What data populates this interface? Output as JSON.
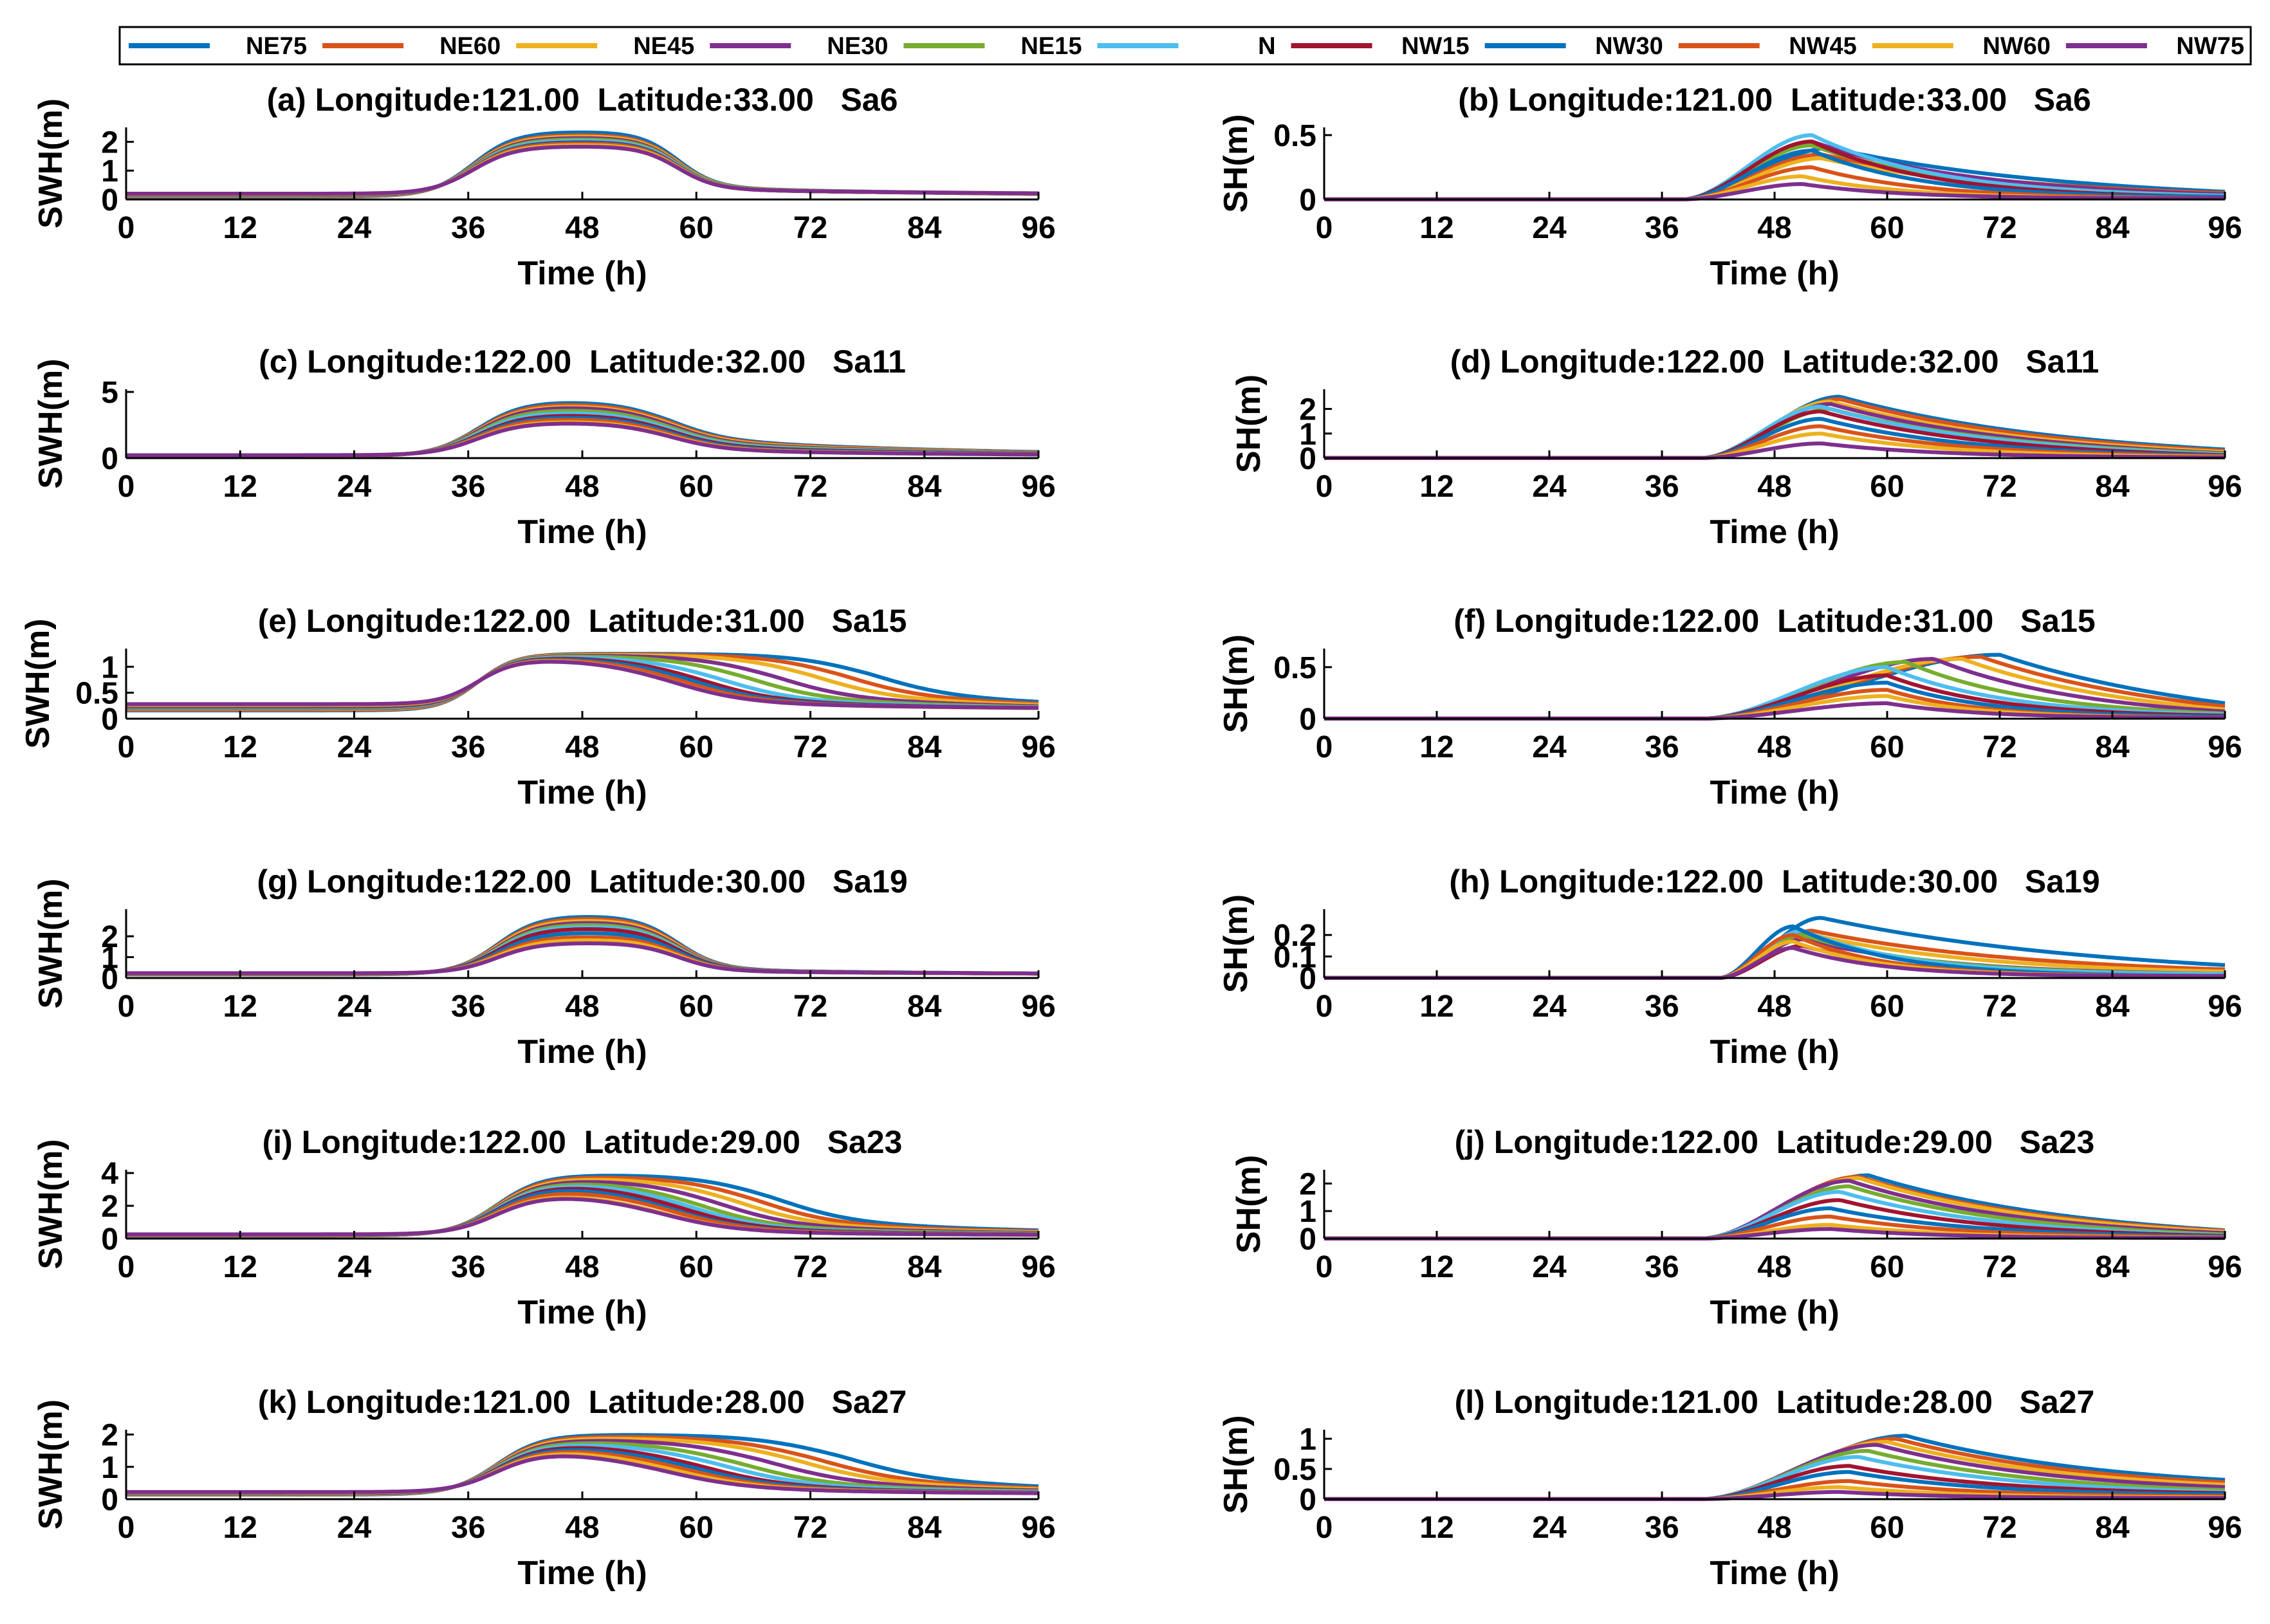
{
  "legend": {
    "placement": "top",
    "entries": [
      {
        "name": "NE75",
        "color": "#0072BD"
      },
      {
        "name": "NE60",
        "color": "#D95319"
      },
      {
        "name": "NE45",
        "color": "#EDB120"
      },
      {
        "name": "NE30",
        "color": "#7E2F8E"
      },
      {
        "name": "NE15",
        "color": "#77AC30"
      },
      {
        "name": "N",
        "color": "#4DBEEE"
      },
      {
        "name": "NW15",
        "color": "#A2142F"
      },
      {
        "name": "NW30",
        "color": "#0072BD"
      },
      {
        "name": "NW45",
        "color": "#D95319"
      },
      {
        "name": "NW60",
        "color": "#EDB120"
      },
      {
        "name": "NW75",
        "color": "#7E2F8E"
      }
    ]
  },
  "chart_data": [
    {
      "type": "line",
      "title": "(a) Longitude:121.00  Latitude:33.00   Sa6",
      "xlabel": "Time (h)",
      "ylabel": "SWH(m)",
      "xlim": [
        0,
        96
      ],
      "ylim": [
        0,
        2.5
      ],
      "xticks": [
        "0",
        "12",
        "24",
        "36",
        "48",
        "60",
        "72",
        "84",
        "96"
      ],
      "yticks": [
        "0",
        "1",
        "2"
      ],
      "ytick_values": [
        0,
        1,
        2
      ],
      "curve": {
        "kind": "swh",
        "base": 0.15,
        "base_spread": 0.05,
        "rise_center": 36.5,
        "rise_k": 0.45,
        "fall_center": 58,
        "fall_k": 0.5,
        "peak": [
          2.35,
          2.25,
          2.2,
          2.15,
          2.1,
          2.05,
          2.0,
          1.98,
          1.95,
          1.9,
          1.85
        ],
        "tail": [
          0.35,
          0.33,
          0.32,
          0.3,
          0.3,
          0.28,
          0.27,
          0.26,
          0.25,
          0.25,
          0.24
        ],
        "tail_tau": 40
      }
    },
    {
      "type": "line",
      "title": "(b) Longitude:121.00  Latitude:33.00   Sa6",
      "xlabel": "Time (h)",
      "ylabel": "SH(m)",
      "xlim": [
        0,
        96
      ],
      "ylim": [
        0,
        0.56
      ],
      "xticks": [
        "0",
        "12",
        "24",
        "36",
        "48",
        "60",
        "72",
        "84",
        "96"
      ],
      "yticks": [
        "0",
        "0.5"
      ],
      "ytick_values": [
        0,
        0.5
      ],
      "curve": {
        "kind": "sh",
        "onset": 38,
        "peak_t": [
          54,
          53,
          53,
          52,
          52,
          52,
          52,
          52,
          52,
          51,
          51
        ],
        "peak": [
          0.4,
          0.35,
          0.32,
          0.45,
          0.42,
          0.5,
          0.45,
          0.38,
          0.25,
          0.18,
          0.12
        ],
        "tau": [
          25,
          22,
          20,
          18,
          16,
          14,
          13,
          12,
          12,
          11,
          11
        ],
        "end": [
          0.06,
          0.05,
          0.04,
          0.04,
          0.03,
          0.03,
          0.02,
          0.02,
          0.01,
          0.01,
          0.01
        ]
      }
    },
    {
      "type": "line",
      "title": "(c) Longitude:122.00  Latitude:32.00   Sa11",
      "xlabel": "Time (h)",
      "ylabel": "SWH(m)",
      "xlim": [
        0,
        96
      ],
      "ylim": [
        0,
        5.2
      ],
      "xticks": [
        "0",
        "12",
        "24",
        "36",
        "48",
        "60",
        "72",
        "84",
        "96"
      ],
      "yticks": [
        "0",
        "5"
      ],
      "ytick_values": [
        0,
        5
      ],
      "curve": {
        "kind": "swh",
        "base": 0.18,
        "base_spread": 0.04,
        "rise_center": 37,
        "rise_k": 0.42,
        "fall_center": 57,
        "fall_k": 0.35,
        "peak": [
          4.3,
          4.15,
          4.0,
          3.9,
          3.7,
          3.5,
          3.3,
          3.15,
          3.0,
          2.8,
          2.7
        ],
        "tail": [
          1.4,
          1.3,
          1.2,
          1.1,
          1.0,
          0.9,
          0.8,
          0.7,
          0.6,
          0.55,
          0.5
        ],
        "tail_tau": 30
      }
    },
    {
      "type": "line",
      "title": "(d) Longitude:122.00  Latitude:32.00   Sa11",
      "xlabel": "Time (h)",
      "ylabel": "SH(m)",
      "xlim": [
        0,
        96
      ],
      "ylim": [
        0,
        2.8
      ],
      "xticks": [
        "0",
        "12",
        "24",
        "36",
        "48",
        "60",
        "72",
        "84",
        "96"
      ],
      "yticks": [
        "0",
        "1",
        "2"
      ],
      "ytick_values": [
        0,
        1,
        2
      ],
      "curve": {
        "kind": "sh",
        "onset": 40,
        "peak_t": [
          55,
          55,
          54,
          54,
          54,
          53,
          53,
          53,
          53,
          53,
          53
        ],
        "peak": [
          2.5,
          2.4,
          2.3,
          2.2,
          2.0,
          2.1,
          1.9,
          1.6,
          1.3,
          1.0,
          0.6
        ],
        "tau": [
          24,
          23,
          22,
          21,
          20,
          19,
          18,
          16,
          15,
          14,
          13
        ],
        "end": [
          0.35,
          0.3,
          0.25,
          0.2,
          0.18,
          0.15,
          0.12,
          0.1,
          0.08,
          0.05,
          0.03
        ]
      }
    },
    {
      "type": "line",
      "title": "(e) Longitude:122.00  Latitude:31.00   Sa15",
      "xlabel": "Time (h)",
      "ylabel": "SWH(m)",
      "xlim": [
        0,
        96
      ],
      "ylim": [
        0,
        1.35
      ],
      "xticks": [
        "0",
        "12",
        "24",
        "36",
        "48",
        "60",
        "72",
        "84",
        "96"
      ],
      "yticks": [
        "0",
        "0.5",
        "1"
      ],
      "ytick_values": [
        0,
        0.5,
        1
      ],
      "curve": {
        "kind": "swh",
        "base": 0.22,
        "base_spread": 0.06,
        "rise_center": 37,
        "rise_k": 0.5,
        "fall_center": [
          78,
          75,
          72,
          68,
          65,
          62,
          60,
          59,
          58,
          57,
          57
        ],
        "fall_k": 0.25,
        "peak": [
          1.25,
          1.24,
          1.23,
          1.22,
          1.21,
          1.2,
          1.19,
          1.18,
          1.17,
          1.16,
          1.15
        ],
        "tail": [
          0.4,
          0.37,
          0.34,
          0.31,
          0.28,
          0.25,
          0.22,
          0.2,
          0.18,
          0.16,
          0.15
        ],
        "tail_tau": 30
      }
    },
    {
      "type": "line",
      "title": "(f) Longitude:122.00  Latitude:31.00   Sa15",
      "xlabel": "Time (h)",
      "ylabel": "SH(m)",
      "xlim": [
        0,
        96
      ],
      "ylim": [
        0,
        0.68
      ],
      "xticks": [
        "0",
        "12",
        "24",
        "36",
        "48",
        "60",
        "72",
        "84",
        "96"
      ],
      "yticks": [
        "0",
        "0.5"
      ],
      "ytick_values": [
        0,
        0.5
      ],
      "curve": {
        "kind": "sh",
        "onset": 40,
        "peak_t": [
          72,
          70,
          68,
          65,
          62,
          60,
          60,
          60,
          60,
          60,
          60
        ],
        "peak": [
          0.62,
          0.6,
          0.58,
          0.58,
          0.55,
          0.5,
          0.42,
          0.35,
          0.28,
          0.22,
          0.15
        ],
        "tau": [
          22,
          20,
          18,
          16,
          14,
          13,
          12,
          11,
          10,
          10,
          10
        ],
        "end": [
          0.15,
          0.12,
          0.09,
          0.07,
          0.05,
          0.04,
          0.03,
          0.02,
          0.01,
          0.01,
          0.01
        ]
      }
    },
    {
      "type": "line",
      "title": "(g) Longitude:122.00  Latitude:30.00   Sa19",
      "xlabel": "Time (h)",
      "ylabel": "SWH(m)",
      "xlim": [
        0,
        96
      ],
      "ylim": [
        0,
        3.3
      ],
      "xticks": [
        "0",
        "12",
        "24",
        "36",
        "48",
        "60",
        "72",
        "84",
        "96"
      ],
      "yticks": [
        "0",
        "1",
        "2"
      ],
      "ytick_values": [
        0,
        1,
        2
      ],
      "curve": {
        "kind": "swh",
        "base": 0.2,
        "base_spread": 0.03,
        "rise_center": 39,
        "rise_k": 0.45,
        "fall_center": 58,
        "fall_k": 0.45,
        "peak": [
          3.0,
          2.9,
          2.8,
          2.7,
          2.6,
          2.5,
          2.4,
          2.2,
          2.0,
          1.85,
          1.7
        ],
        "tail": [
          0.3,
          0.28,
          0.27,
          0.26,
          0.25,
          0.24,
          0.23,
          0.22,
          0.21,
          0.2,
          0.2
        ],
        "tail_tau": 40
      }
    },
    {
      "type": "line",
      "title": "(h) Longitude:122.00  Latitude:30.00   Sa19",
      "xlabel": "Time (h)",
      "ylabel": "SH(m)",
      "xlim": [
        0,
        96
      ],
      "ylim": [
        0,
        0.32
      ],
      "xticks": [
        "0",
        "12",
        "24",
        "36",
        "48",
        "60",
        "72",
        "84",
        "96"
      ],
      "yticks": [
        "0",
        "0.1",
        "0.2"
      ],
      "ytick_values": [
        0,
        0.1,
        0.2
      ],
      "curve": {
        "kind": "sh",
        "onset": 42,
        "peak_t": [
          53,
          52,
          52,
          51,
          51,
          51,
          51,
          50,
          50,
          50,
          50
        ],
        "peak": [
          0.28,
          0.22,
          0.2,
          0.18,
          0.2,
          0.22,
          0.15,
          0.24,
          0.2,
          0.17,
          0.14
        ],
        "tau": [
          30,
          24,
          20,
          16,
          14,
          12,
          12,
          11,
          10,
          10,
          10
        ],
        "end": [
          0.06,
          0.04,
          0.03,
          0.02,
          0.02,
          0.02,
          0.01,
          0.01,
          0.01,
          0.01,
          0.01
        ]
      }
    },
    {
      "type": "line",
      "title": "(i) Longitude:122.00  Latitude:29.00   Sa23",
      "xlabel": "Time (h)",
      "ylabel": "SWH(m)",
      "xlim": [
        0,
        96
      ],
      "ylim": [
        0,
        4.2
      ],
      "xticks": [
        "0",
        "12",
        "24",
        "36",
        "48",
        "60",
        "72",
        "84",
        "96"
      ],
      "yticks": [
        "0",
        "2",
        "4"
      ],
      "ytick_values": [
        0,
        2,
        4
      ],
      "curve": {
        "kind": "swh",
        "base": 0.22,
        "base_spread": 0.04,
        "rise_center": 39,
        "rise_k": 0.42,
        "fall_center": [
          68,
          66,
          64,
          62,
          60,
          59,
          58,
          57,
          57,
          56,
          56
        ],
        "fall_k": 0.25,
        "peak": [
          3.9,
          3.8,
          3.7,
          3.6,
          3.5,
          3.4,
          3.3,
          3.2,
          3.0,
          2.8,
          2.7
        ],
        "tail": [
          1.0,
          0.9,
          0.8,
          0.7,
          0.6,
          0.5,
          0.45,
          0.4,
          0.35,
          0.3,
          0.28
        ],
        "tail_tau": 30
      }
    },
    {
      "type": "line",
      "title": "(j) Longitude:122.00  Latitude:29.00   Sa23",
      "xlabel": "Time (h)",
      "ylabel": "SH(m)",
      "xlim": [
        0,
        96
      ],
      "ylim": [
        0,
        2.5
      ],
      "xticks": [
        "0",
        "12",
        "24",
        "36",
        "48",
        "60",
        "72",
        "84",
        "96"
      ],
      "yticks": [
        "0",
        "1",
        "2"
      ],
      "ytick_values": [
        0,
        1,
        2
      ],
      "curve": {
        "kind": "sh",
        "onset": 40,
        "peak_t": [
          58,
          57,
          57,
          56,
          56,
          55,
          55,
          54,
          54,
          54,
          54
        ],
        "peak": [
          2.3,
          2.25,
          2.2,
          2.1,
          1.9,
          1.7,
          1.4,
          1.1,
          0.8,
          0.5,
          0.35
        ],
        "tau": [
          22,
          21,
          20,
          19,
          18,
          17,
          16,
          15,
          14,
          13,
          12
        ],
        "end": [
          0.3,
          0.28,
          0.25,
          0.2,
          0.15,
          0.12,
          0.1,
          0.08,
          0.05,
          0.03,
          0.02
        ]
      }
    },
    {
      "type": "line",
      "title": "(k) Longitude:121.00  Latitude:28.00   Sa27",
      "xlabel": "Time (h)",
      "ylabel": "SWH(m)",
      "xlim": [
        0,
        96
      ],
      "ylim": [
        0,
        2.15
      ],
      "xticks": [
        "0",
        "12",
        "24",
        "36",
        "48",
        "60",
        "72",
        "84",
        "96"
      ],
      "yticks": [
        "0",
        "1",
        "2"
      ],
      "ytick_values": [
        0,
        1,
        2
      ],
      "curve": {
        "kind": "swh",
        "base": 0.18,
        "base_spread": 0.04,
        "rise_center": 39,
        "rise_k": 0.42,
        "fall_center": [
          75,
          72,
          70,
          67,
          64,
          62,
          60,
          59,
          58,
          57,
          56
        ],
        "fall_k": 0.22,
        "peak": [
          2.0,
          1.95,
          1.9,
          1.85,
          1.8,
          1.75,
          1.7,
          1.65,
          1.6,
          1.55,
          1.5
        ],
        "tail": [
          0.6,
          0.55,
          0.5,
          0.45,
          0.4,
          0.35,
          0.3,
          0.28,
          0.25,
          0.22,
          0.2
        ],
        "tail_tau": 30
      }
    },
    {
      "type": "line",
      "title": "(l) Longitude:121.00  Latitude:28.00   Sa27",
      "xlabel": "Time (h)",
      "ylabel": "SH(m)",
      "xlim": [
        0,
        96
      ],
      "ylim": [
        0,
        1.15
      ],
      "xticks": [
        "0",
        "12",
        "24",
        "36",
        "48",
        "60",
        "72",
        "84",
        "96"
      ],
      "yticks": [
        "0",
        "0.5",
        "1"
      ],
      "ytick_values": [
        0,
        0.5,
        1
      ],
      "curve": {
        "kind": "sh",
        "onset": 40,
        "peak_t": [
          62,
          61,
          60,
          59,
          58,
          57,
          56,
          56,
          56,
          55,
          55
        ],
        "peak": [
          1.05,
          1.0,
          0.95,
          0.9,
          0.8,
          0.7,
          0.55,
          0.45,
          0.3,
          0.2,
          0.12
        ],
        "tau": [
          24,
          23,
          22,
          21,
          20,
          19,
          18,
          16,
          15,
          14,
          13
        ],
        "end": [
          0.32,
          0.28,
          0.24,
          0.2,
          0.15,
          0.12,
          0.1,
          0.08,
          0.05,
          0.03,
          0.02
        ]
      }
    }
  ]
}
